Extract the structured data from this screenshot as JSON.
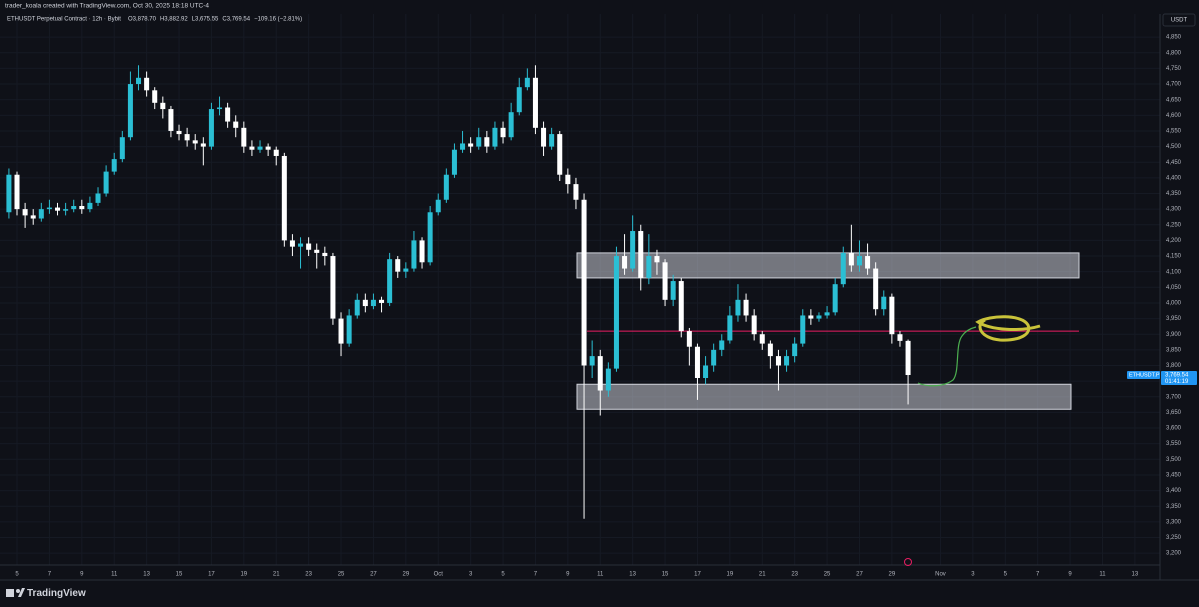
{
  "header": "trader_koala created with TradingView.com, Oct 30, 2025 18:18 UTC-4",
  "footer": "TradingView",
  "chart_data": {
    "type": "candlestick",
    "legend": {
      "symbol": "ETHUSDT Perpetual Contract · 12h · Bybit",
      "open": "O3,878.70",
      "high": "H3,882.92",
      "low": "L3,675.55",
      "close": "C3,769.54",
      "change": "−109.16 (−2.81%)"
    },
    "currency": "USDT",
    "price_tag": {
      "symbol": "ETHUSDT.P",
      "label": "3,769.54",
      "countdown": "01:41:19"
    },
    "up_color": "#2bbfd4",
    "down_color": "#ffffff",
    "grid": true,
    "open": [
      4290,
      4410,
      4300,
      4280,
      4270,
      4300,
      4305,
      4295,
      4300,
      4310,
      4300,
      4320,
      4350,
      4420,
      4460,
      4530,
      4700,
      4720,
      4680,
      4640,
      4620,
      4550,
      4540,
      4520,
      4510,
      4500,
      4620,
      4625,
      4580,
      4560,
      4500,
      4490,
      4500,
      4490,
      4470,
      4200,
      4180,
      4190,
      4170,
      4160,
      4150,
      3950,
      3870,
      3960,
      4010,
      3990,
      4010,
      4000,
      4140,
      4100,
      4110,
      4200,
      4130,
      4290,
      4330,
      4410,
      4490,
      4510,
      4500,
      4530,
      4500,
      4560,
      4530,
      4610,
      4690,
      4720,
      4560,
      4500,
      4540,
      4410,
      4380,
      4330,
      3800,
      3830,
      3720,
      3790,
      4150,
      4110,
      4230,
      4080,
      4150,
      4130,
      4010,
      4070,
      3910,
      3860,
      3760,
      3800,
      3850,
      3880,
      3960,
      4010,
      3960,
      3900,
      3870,
      3830,
      3800,
      3830,
      3870,
      3960,
      3950,
      3960,
      3970,
      4060,
      4160,
      4120,
      4150,
      4110,
      3980,
      4020,
      3900,
      3878.7
    ],
    "high": [
      4430,
      4420,
      4320,
      4300,
      4320,
      4330,
      4320,
      4320,
      4330,
      4330,
      4340,
      4370,
      4440,
      4480,
      4550,
      4740,
      4760,
      4740,
      4690,
      4660,
      4630,
      4570,
      4560,
      4540,
      4530,
      4640,
      4660,
      4640,
      4600,
      4580,
      4520,
      4520,
      4510,
      4500,
      4480,
      4220,
      4210,
      4210,
      4190,
      4180,
      4160,
      3970,
      3980,
      4030,
      4030,
      4030,
      4020,
      4160,
      4150,
      4130,
      4230,
      4210,
      4310,
      4350,
      4430,
      4510,
      4550,
      4530,
      4560,
      4550,
      4580,
      4580,
      4640,
      4720,
      4750,
      4760,
      4580,
      4560,
      4550,
      4430,
      4400,
      4350,
      3880,
      3850,
      3810,
      4180,
      4220,
      4280,
      4250,
      4220,
      4170,
      4140,
      4090,
      4080,
      3920,
      3870,
      3830,
      3870,
      3900,
      3990,
      4060,
      4030,
      3980,
      3910,
      3880,
      3850,
      3850,
      3890,
      3980,
      3980,
      3970,
      3990,
      4080,
      4180,
      4250,
      4200,
      4190,
      4130,
      4040,
      4030,
      3910,
      3882.92
    ],
    "low": [
      4270,
      4280,
      4240,
      4250,
      4260,
      4285,
      4280,
      4280,
      4290,
      4285,
      4290,
      4310,
      4340,
      4410,
      4450,
      4520,
      4680,
      4660,
      4620,
      4590,
      4530,
      4520,
      4500,
      4490,
      4440,
      4490,
      4600,
      4560,
      4530,
      4480,
      4470,
      4480,
      4470,
      4440,
      4180,
      4150,
      4110,
      4150,
      4110,
      4120,
      3930,
      3830,
      3860,
      3950,
      3970,
      3980,
      3970,
      3990,
      4080,
      4080,
      4100,
      4110,
      4120,
      4280,
      4320,
      4400,
      4480,
      4480,
      4490,
      4480,
      4490,
      4510,
      4520,
      4600,
      4680,
      4540,
      4470,
      4490,
      4390,
      4350,
      4300,
      3310,
      3760,
      3640,
      3700,
      3780,
      4090,
      4100,
      4040,
      4060,
      4090,
      3990,
      3990,
      3890,
      3800,
      3690,
      3740,
      3780,
      3830,
      3870,
      3940,
      3940,
      3880,
      3850,
      3790,
      3720,
      3780,
      3810,
      3860,
      3930,
      3940,
      3950,
      3960,
      4050,
      4100,
      4100,
      4090,
      3960,
      3960,
      3870,
      3860,
      3675.55
    ],
    "close": [
      4410,
      4300,
      4280,
      4270,
      4300,
      4305,
      4295,
      4300,
      4310,
      4300,
      4320,
      4350,
      4420,
      4460,
      4530,
      4700,
      4720,
      4680,
      4640,
      4620,
      4550,
      4540,
      4520,
      4510,
      4500,
      4620,
      4625,
      4580,
      4560,
      4500,
      4490,
      4500,
      4490,
      4470,
      4200,
      4180,
      4190,
      4170,
      4160,
      4150,
      3950,
      3870,
      3960,
      4010,
      3990,
      4010,
      4000,
      4140,
      4100,
      4110,
      4200,
      4130,
      4290,
      4330,
      4410,
      4490,
      4510,
      4500,
      4530,
      4500,
      4560,
      4530,
      4610,
      4690,
      4720,
      4560,
      4500,
      4540,
      4410,
      4380,
      4330,
      3800,
      3830,
      3720,
      3790,
      4150,
      4110,
      4230,
      4080,
      4150,
      4130,
      4010,
      4070,
      3910,
      3860,
      3760,
      3800,
      3850,
      3880,
      3960,
      4010,
      3960,
      3900,
      3870,
      3830,
      3800,
      3830,
      3870,
      3960,
      3950,
      3960,
      3970,
      4060,
      4160,
      4120,
      4150,
      4110,
      3980,
      4020,
      3900,
      3878.7,
      3769.54
    ],
    "zones": [
      {
        "top": 4160,
        "bottom": 4080
      },
      {
        "top": 3740,
        "bottom": 3660
      }
    ],
    "level": 3910,
    "xlim": [
      -1.1,
      142.1
    ],
    "xticks": [
      {
        "value": 1,
        "label": "5"
      },
      {
        "value": 5,
        "label": "7"
      },
      {
        "value": 9,
        "label": "9"
      },
      {
        "value": 13,
        "label": "11"
      },
      {
        "value": 17,
        "label": "13"
      },
      {
        "value": 21,
        "label": "15"
      },
      {
        "value": 25,
        "label": "17"
      },
      {
        "value": 29,
        "label": "19"
      },
      {
        "value": 33,
        "label": "21"
      },
      {
        "value": 37,
        "label": "23"
      },
      {
        "value": 41,
        "label": "25"
      },
      {
        "value": 45,
        "label": "27"
      },
      {
        "value": 49,
        "label": "29"
      },
      {
        "value": 53,
        "label": "Oct"
      },
      {
        "value": 57,
        "label": "3"
      },
      {
        "value": 61,
        "label": "5"
      },
      {
        "value": 65,
        "label": "7"
      },
      {
        "value": 69,
        "label": "9"
      },
      {
        "value": 73,
        "label": "11"
      },
      {
        "value": 77,
        "label": "13"
      },
      {
        "value": 81,
        "label": "15"
      },
      {
        "value": 85,
        "label": "17"
      },
      {
        "value": 89,
        "label": "19"
      },
      {
        "value": 93,
        "label": "21"
      },
      {
        "value": 97,
        "label": "23"
      },
      {
        "value": 101,
        "label": "25"
      },
      {
        "value": 105,
        "label": "27"
      },
      {
        "value": 109,
        "label": "29"
      },
      {
        "value": 115,
        "label": "Nov"
      },
      {
        "value": 119,
        "label": "3"
      },
      {
        "value": 123,
        "label": "5"
      },
      {
        "value": 127,
        "label": "7"
      },
      {
        "value": 131,
        "label": "9"
      },
      {
        "value": 135,
        "label": "11"
      },
      {
        "value": 139,
        "label": "13"
      }
    ],
    "ylim": [
      3162,
      4924
    ],
    "yticks": [
      {
        "value": 3200,
        "label": "3,200"
      },
      {
        "value": 3250,
        "label": "3,250"
      },
      {
        "value": 3300,
        "label": "3,300"
      },
      {
        "value": 3350,
        "label": "3,350"
      },
      {
        "value": 3400,
        "label": "3,400"
      },
      {
        "value": 3450,
        "label": "3,450"
      },
      {
        "value": 3500,
        "label": "3,500"
      },
      {
        "value": 3550,
        "label": "3,550"
      },
      {
        "value": 3600,
        "label": "3,600"
      },
      {
        "value": 3650,
        "label": "3,650"
      },
      {
        "value": 3700,
        "label": "3,700"
      },
      {
        "value": 3750,
        "label": "3,750"
      },
      {
        "value": 3800,
        "label": "3,800"
      },
      {
        "value": 3850,
        "label": "3,850"
      },
      {
        "value": 3900,
        "label": "3,900"
      },
      {
        "value": 3950,
        "label": "3,950"
      },
      {
        "value": 4000,
        "label": "4,000"
      },
      {
        "value": 4050,
        "label": "4,050"
      },
      {
        "value": 4100,
        "label": "4,100"
      },
      {
        "value": 4150,
        "label": "4,150"
      },
      {
        "value": 4200,
        "label": "4,200"
      },
      {
        "value": 4250,
        "label": "4,250"
      },
      {
        "value": 4300,
        "label": "4,300"
      },
      {
        "value": 4350,
        "label": "4,350"
      },
      {
        "value": 4400,
        "label": "4,400"
      },
      {
        "value": 4450,
        "label": "4,450"
      },
      {
        "value": 4500,
        "label": "4,500"
      },
      {
        "value": 4550,
        "label": "4,550"
      },
      {
        "value": 4600,
        "label": "4,600"
      },
      {
        "value": 4650,
        "label": "4,650"
      },
      {
        "value": 4700,
        "label": "4,700"
      },
      {
        "value": 4750,
        "label": "4,750"
      },
      {
        "value": 4800,
        "label": "4,800"
      },
      {
        "value": 4850,
        "label": "4,850"
      }
    ]
  }
}
